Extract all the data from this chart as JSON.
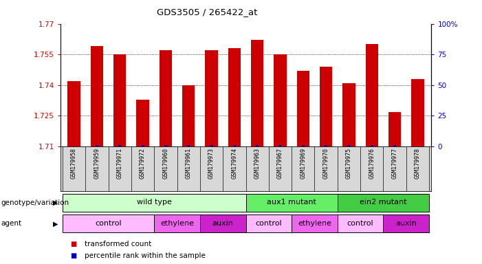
{
  "title": "GDS3505 / 265422_at",
  "samples": [
    "GSM179958",
    "GSM179959",
    "GSM179971",
    "GSM179972",
    "GSM179960",
    "GSM179961",
    "GSM179973",
    "GSM179974",
    "GSM179963",
    "GSM179967",
    "GSM179969",
    "GSM179970",
    "GSM179975",
    "GSM179976",
    "GSM179977",
    "GSM179978"
  ],
  "red_values": [
    1.742,
    1.759,
    1.755,
    1.733,
    1.757,
    1.74,
    1.757,
    1.758,
    1.762,
    1.755,
    1.747,
    1.749,
    1.741,
    1.76,
    1.727,
    1.743
  ],
  "blue_values": [
    0,
    1,
    1,
    1,
    1,
    1,
    1,
    1,
    1,
    1,
    1,
    1,
    1,
    1,
    1,
    0
  ],
  "ylim_left": [
    1.71,
    1.77
  ],
  "ylim_right": [
    0,
    100
  ],
  "yticks_left": [
    1.71,
    1.725,
    1.74,
    1.755,
    1.77
  ],
  "yticks_right": [
    0,
    25,
    50,
    75,
    100
  ],
  "bar_color": "#cc0000",
  "blue_color": "#0000bb",
  "genotype_groups": [
    {
      "label": "wild type",
      "start": 0,
      "end": 8,
      "color": "#ccffcc"
    },
    {
      "label": "aux1 mutant",
      "start": 8,
      "end": 12,
      "color": "#66ee66"
    },
    {
      "label": "ein2 mutant",
      "start": 12,
      "end": 16,
      "color": "#44cc44"
    }
  ],
  "agent_groups": [
    {
      "label": "control",
      "start": 0,
      "end": 4,
      "color": "#ffbbff"
    },
    {
      "label": "ethylene",
      "start": 4,
      "end": 6,
      "color": "#ee66ee"
    },
    {
      "label": "auxin",
      "start": 6,
      "end": 8,
      "color": "#cc22cc"
    },
    {
      "label": "control",
      "start": 8,
      "end": 10,
      "color": "#ffbbff"
    },
    {
      "label": "ethylene",
      "start": 10,
      "end": 12,
      "color": "#ee66ee"
    },
    {
      "label": "control",
      "start": 12,
      "end": 14,
      "color": "#ffbbff"
    },
    {
      "label": "auxin",
      "start": 14,
      "end": 16,
      "color": "#cc22cc"
    }
  ],
  "legend_items": [
    {
      "color": "#cc0000",
      "label": "transformed count"
    },
    {
      "color": "#0000bb",
      "label": "percentile rank within the sample"
    }
  ],
  "row_labels": [
    "genotype/variation",
    "agent"
  ],
  "background_color": "#ffffff",
  "plot_bg": "#ffffff",
  "tick_label_color_left": "#cc0000",
  "tick_label_color_right": "#0000bb",
  "sample_bg": "#d8d8d8"
}
